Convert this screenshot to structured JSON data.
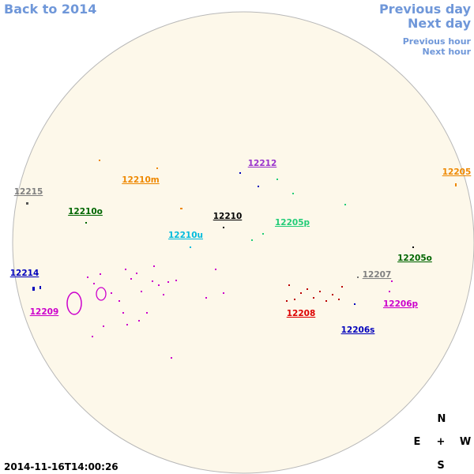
{
  "navigation": {
    "back_year": "Back to 2014",
    "previous_day": "Previous day",
    "next_day": "Next day",
    "previous_hour": "Previous hour",
    "next_hour": "Next hour"
  },
  "regions": [
    "12212",
    "12210m",
    "12215",
    "12205",
    "12210o",
    "12210",
    "12205p",
    "12210u",
    "12205o",
    "12214",
    "12207",
    "12209",
    "12208",
    "12206p",
    "12206s"
  ],
  "compass": {
    "north": "N",
    "east": "E",
    "center": "+",
    "west": "W",
    "south": "S"
  },
  "timestamp": "2014-11-16T14:00:26"
}
